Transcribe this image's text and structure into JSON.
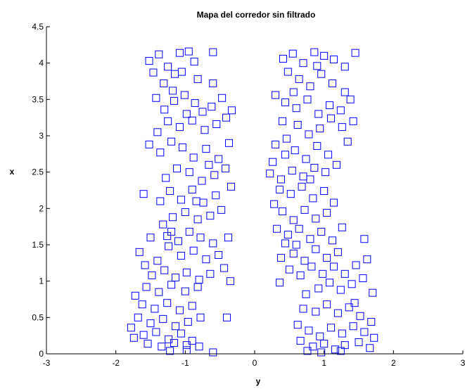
{
  "chart_data": {
    "type": "scatter",
    "title": "Mapa del corredor sin filtrado",
    "xlabel": "y",
    "ylabel": "x",
    "xlim": [
      -3,
      3
    ],
    "ylim": [
      0,
      4.5
    ],
    "xticks": [
      -3,
      -2,
      -1,
      0,
      1,
      2,
      3
    ],
    "yticks": [
      0,
      0.5,
      1,
      1.5,
      2,
      2.5,
      3,
      3.5,
      4,
      4.5
    ],
    "xtick_labels": [
      "-3",
      "-2",
      "-1",
      "0",
      "1",
      "2",
      "3"
    ],
    "ytick_labels": [
      "0",
      "0.5",
      "1",
      "1.5",
      "2",
      "2.5",
      "3",
      "3.5",
      "4",
      "4.5"
    ],
    "marker": "square",
    "marker_color": "#0000ff",
    "grid": false,
    "series": [
      {
        "points": [
          [
            -1.52,
            4.03
          ],
          [
            -1.38,
            4.12
          ],
          [
            -1.25,
            3.95
          ],
          [
            -1.08,
            4.14
          ],
          [
            -0.95,
            4.16
          ],
          [
            -0.87,
            4.02
          ],
          [
            -0.6,
            4.15
          ],
          [
            -1.46,
            3.87
          ],
          [
            -1.31,
            3.72
          ],
          [
            -1.18,
            3.62
          ],
          [
            -1.05,
            3.88
          ],
          [
            -0.82,
            3.78
          ],
          [
            -1.42,
            3.52
          ],
          [
            -1.3,
            3.36
          ],
          [
            -1.16,
            3.48
          ],
          [
            -1.01,
            3.56
          ],
          [
            -0.86,
            3.45
          ],
          [
            -0.75,
            3.33
          ],
          [
            -0.62,
            3.4
          ],
          [
            -0.47,
            3.52
          ],
          [
            -0.41,
            3.25
          ],
          [
            -0.55,
            3.16
          ],
          [
            -0.72,
            3.08
          ],
          [
            -0.9,
            3.21
          ],
          [
            -1.08,
            3.12
          ],
          [
            -1.25,
            3.2
          ],
          [
            -1.4,
            3.05
          ],
          [
            -1.52,
            2.88
          ],
          [
            -1.36,
            2.77
          ],
          [
            -1.2,
            2.92
          ],
          [
            -1.04,
            2.84
          ],
          [
            -0.88,
            2.7
          ],
          [
            -0.7,
            2.82
          ],
          [
            -0.52,
            2.68
          ],
          [
            -0.42,
            2.55
          ],
          [
            -0.58,
            2.46
          ],
          [
            -0.76,
            2.38
          ],
          [
            -0.94,
            2.5
          ],
          [
            -1.12,
            2.55
          ],
          [
            -1.28,
            2.42
          ],
          [
            -1.22,
            2.24
          ],
          [
            -1.06,
            2.12
          ],
          [
            -0.9,
            2.26
          ],
          [
            -0.74,
            2.08
          ],
          [
            -0.56,
            2.18
          ],
          [
            -0.48,
            1.98
          ],
          [
            -0.64,
            1.9
          ],
          [
            -0.82,
            1.85
          ],
          [
            -1.0,
            1.95
          ],
          [
            -1.18,
            1.88
          ],
          [
            -1.32,
            1.78
          ],
          [
            -1.26,
            1.62
          ],
          [
            -1.1,
            1.55
          ],
          [
            -0.94,
            1.68
          ],
          [
            -0.78,
            1.6
          ],
          [
            -0.6,
            1.52
          ],
          [
            -0.52,
            1.36
          ],
          [
            -0.7,
            1.3
          ],
          [
            -0.88,
            1.42
          ],
          [
            -1.06,
            1.35
          ],
          [
            -1.24,
            1.48
          ],
          [
            -1.4,
            1.28
          ],
          [
            -1.58,
            1.22
          ],
          [
            -1.48,
            1.08
          ],
          [
            -1.3,
            1.15
          ],
          [
            -1.14,
            1.05
          ],
          [
            -0.98,
            1.12
          ],
          [
            -0.8,
            1.02
          ],
          [
            -0.64,
            1.1
          ],
          [
            -0.82,
            0.92
          ],
          [
            -1.0,
            0.86
          ],
          [
            -1.2,
            0.95
          ],
          [
            -1.38,
            0.85
          ],
          [
            -1.56,
            0.92
          ],
          [
            -1.72,
            0.8
          ],
          [
            -1.62,
            0.68
          ],
          [
            -1.44,
            0.62
          ],
          [
            -1.26,
            0.7
          ],
          [
            -1.08,
            0.6
          ],
          [
            -0.9,
            0.66
          ],
          [
            -0.78,
            0.5
          ],
          [
            -0.96,
            0.44
          ],
          [
            -1.14,
            0.38
          ],
          [
            -1.32,
            0.48
          ],
          [
            -1.5,
            0.42
          ],
          [
            -1.68,
            0.5
          ],
          [
            -1.78,
            0.36
          ],
          [
            -1.6,
            0.26
          ],
          [
            -1.42,
            0.3
          ],
          [
            -1.24,
            0.2
          ],
          [
            -1.06,
            0.28
          ],
          [
            -0.9,
            0.18
          ],
          [
            -0.8,
            0.1
          ],
          [
            -0.98,
            0.12
          ],
          [
            -1.16,
            0.15
          ],
          [
            -1.34,
            0.1
          ],
          [
            -1.54,
            0.14
          ],
          [
            -1.74,
            0.22
          ],
          [
            -1.22,
            0.04
          ],
          [
            -0.98,
            0.05
          ],
          [
            -0.6,
            0.02
          ],
          [
            -0.4,
            0.5
          ],
          [
            -0.35,
            1.0
          ],
          [
            -0.38,
            1.6
          ],
          [
            -0.34,
            2.3
          ],
          [
            -0.37,
            2.9
          ],
          [
            -0.33,
            3.35
          ],
          [
            -0.6,
            3.72
          ],
          [
            -1.6,
            2.2
          ],
          [
            -1.66,
            1.4
          ],
          [
            -1.15,
            3.85
          ],
          [
            -0.98,
            3.3
          ],
          [
            -0.66,
            2.6
          ],
          [
            -0.84,
            2.1
          ],
          [
            -1.2,
            1.68
          ],
          [
            -0.44,
            1.18
          ],
          [
            -1.36,
            2.1
          ],
          [
            -1.5,
            1.6
          ],
          [
            0.41,
            4.06
          ],
          [
            0.55,
            4.13
          ],
          [
            0.7,
            4.0
          ],
          [
            0.86,
            4.15
          ],
          [
            1.0,
            4.1
          ],
          [
            1.14,
            4.05
          ],
          [
            1.3,
            3.95
          ],
          [
            1.45,
            4.14
          ],
          [
            0.48,
            3.88
          ],
          [
            0.64,
            3.78
          ],
          [
            0.8,
            3.68
          ],
          [
            0.96,
            3.85
          ],
          [
            1.12,
            3.72
          ],
          [
            0.3,
            3.56
          ],
          [
            0.44,
            3.46
          ],
          [
            0.6,
            3.38
          ],
          [
            0.76,
            3.5
          ],
          [
            0.92,
            3.3
          ],
          [
            1.08,
            3.42
          ],
          [
            1.24,
            3.35
          ],
          [
            1.38,
            3.5
          ],
          [
            1.42,
            3.2
          ],
          [
            1.26,
            3.12
          ],
          [
            1.1,
            3.24
          ],
          [
            0.94,
            3.1
          ],
          [
            0.78,
            3.02
          ],
          [
            0.62,
            3.15
          ],
          [
            0.46,
            2.96
          ],
          [
            0.3,
            2.88
          ],
          [
            0.44,
            2.74
          ],
          [
            0.58,
            2.8
          ],
          [
            0.74,
            2.68
          ],
          [
            0.9,
            2.86
          ],
          [
            1.06,
            2.74
          ],
          [
            1.18,
            2.6
          ],
          [
            1.02,
            2.5
          ],
          [
            0.86,
            2.56
          ],
          [
            0.7,
            2.44
          ],
          [
            0.54,
            2.52
          ],
          [
            0.38,
            2.4
          ],
          [
            0.22,
            2.48
          ],
          [
            0.36,
            2.26
          ],
          [
            0.52,
            2.2
          ],
          [
            0.68,
            2.3
          ],
          [
            0.84,
            2.14
          ],
          [
            1.0,
            2.24
          ],
          [
            1.14,
            2.08
          ],
          [
            1.04,
            1.94
          ],
          [
            0.88,
            1.86
          ],
          [
            0.72,
            1.98
          ],
          [
            0.56,
            1.84
          ],
          [
            0.4,
            1.96
          ],
          [
            0.32,
            1.72
          ],
          [
            0.48,
            1.64
          ],
          [
            0.64,
            1.72
          ],
          [
            0.8,
            1.58
          ],
          [
            0.96,
            1.68
          ],
          [
            1.12,
            1.56
          ],
          [
            1.2,
            1.4
          ],
          [
            1.04,
            1.32
          ],
          [
            0.88,
            1.44
          ],
          [
            0.72,
            1.28
          ],
          [
            0.56,
            1.38
          ],
          [
            0.38,
            1.32
          ],
          [
            0.5,
            1.16
          ],
          [
            0.66,
            1.08
          ],
          [
            0.82,
            1.2
          ],
          [
            0.98,
            1.1
          ],
          [
            1.14,
            1.2
          ],
          [
            1.3,
            1.1
          ],
          [
            1.46,
            1.22
          ],
          [
            1.62,
            1.3
          ],
          [
            1.56,
            1.04
          ],
          [
            1.4,
            0.96
          ],
          [
            1.24,
            0.88
          ],
          [
            1.08,
            0.98
          ],
          [
            0.92,
            0.9
          ],
          [
            0.74,
            0.82
          ],
          [
            0.7,
            0.62
          ],
          [
            0.88,
            0.58
          ],
          [
            1.04,
            0.68
          ],
          [
            1.2,
            0.56
          ],
          [
            1.36,
            0.64
          ],
          [
            1.52,
            0.52
          ],
          [
            1.68,
            0.44
          ],
          [
            1.58,
            0.3
          ],
          [
            1.42,
            0.38
          ],
          [
            1.26,
            0.28
          ],
          [
            1.1,
            0.36
          ],
          [
            0.94,
            0.24
          ],
          [
            0.78,
            0.32
          ],
          [
            0.66,
            0.18
          ],
          [
            0.84,
            0.1
          ],
          [
            1.0,
            0.14
          ],
          [
            1.16,
            0.06
          ],
          [
            1.3,
            0.12
          ],
          [
            1.5,
            0.16
          ],
          [
            1.66,
            0.08
          ],
          [
            1.72,
            0.22
          ],
          [
            0.96,
            0.02
          ],
          [
            1.24,
            0.04
          ],
          [
            0.36,
            0.98
          ],
          [
            0.28,
            2.06
          ],
          [
            0.4,
            3.2
          ],
          [
            1.58,
            1.58
          ],
          [
            1.7,
            0.84
          ],
          [
            0.6,
            1.5
          ],
          [
            0.8,
            2.4
          ],
          [
            1.3,
            3.6
          ],
          [
            0.56,
            3.6
          ],
          [
            1.44,
            0.7
          ],
          [
            0.62,
            0.4
          ],
          [
            0.26,
            2.64
          ],
          [
            1.34,
            2.92
          ],
          [
            0.9,
            3.96
          ],
          [
            0.76,
            0.04
          ],
          [
            1.26,
            1.74
          ],
          [
            0.44,
            1.52
          ]
        ]
      }
    ]
  }
}
